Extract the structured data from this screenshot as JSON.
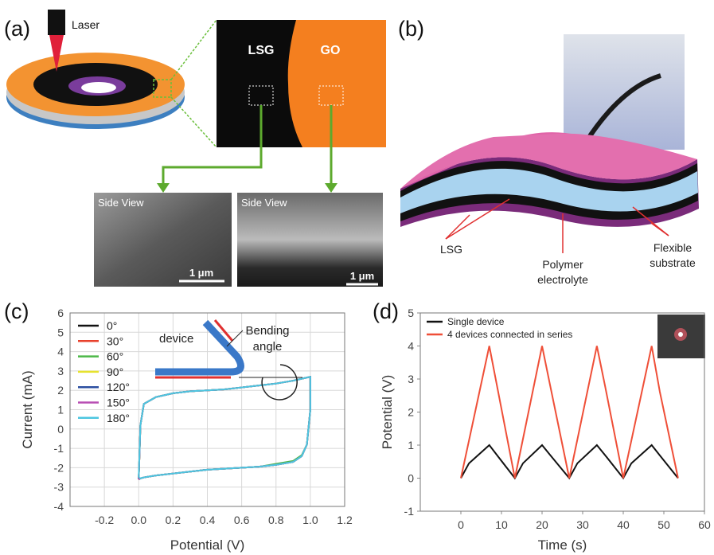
{
  "panel_a": {
    "label": "(a)",
    "laser": "Laser",
    "zoom_left": "LSG",
    "zoom_right": "GO",
    "sem_left": {
      "caption": "Side View",
      "scale": "1 μm"
    },
    "sem_right": {
      "caption": "Side View",
      "scale": "1 μm"
    }
  },
  "panel_b": {
    "label": "(b)",
    "lsg": "LSG",
    "electrolyte": [
      "Polymer",
      "electrolyte"
    ],
    "substrate": [
      "Flexible",
      "substrate"
    ]
  },
  "chart_data": [
    {
      "type": "line",
      "panel_label": "(c)",
      "x_label": "Potential (V)",
      "y_label": "Current (mA)",
      "annotations": {
        "device": "device",
        "angle": [
          "Bending",
          "angle"
        ]
      },
      "x": [
        0,
        0.01,
        0.03,
        0.1,
        0.2,
        0.3,
        0.4,
        0.5,
        0.6,
        0.7,
        0.8,
        0.9,
        1.0,
        1.0,
        0.98,
        0.95,
        0.9,
        0.8,
        0.7,
        0.6,
        0.5,
        0.4,
        0.3,
        0.2,
        0.1,
        0.03,
        0.01,
        0
      ],
      "series": [
        {
          "name": "0°",
          "color": "#111111",
          "values": [
            -2.6,
            0.2,
            1.3,
            1.65,
            1.85,
            1.95,
            2.0,
            2.05,
            2.15,
            2.25,
            2.35,
            2.5,
            2.7,
            1.0,
            -0.8,
            -1.4,
            -1.7,
            -1.85,
            -1.95,
            -2.0,
            -2.05,
            -2.1,
            -2.2,
            -2.3,
            -2.4,
            -2.5,
            -2.55,
            -2.6
          ]
        },
        {
          "name": "30°",
          "color": "#e8412c",
          "values": [
            -2.6,
            0.2,
            1.3,
            1.65,
            1.85,
            1.95,
            2.0,
            2.05,
            2.15,
            2.25,
            2.35,
            2.5,
            2.7,
            1.0,
            -0.8,
            -1.4,
            -1.7,
            -1.85,
            -1.95,
            -2.0,
            -2.05,
            -2.1,
            -2.2,
            -2.3,
            -2.4,
            -2.5,
            -2.55,
            -2.6
          ]
        },
        {
          "name": "60°",
          "color": "#4cb848",
          "values": [
            -2.6,
            0.2,
            1.3,
            1.65,
            1.85,
            1.95,
            2.0,
            2.05,
            2.15,
            2.25,
            2.35,
            2.5,
            2.7,
            1.0,
            -0.8,
            -1.35,
            -1.65,
            -1.8,
            -1.95,
            -2.0,
            -2.05,
            -2.1,
            -2.2,
            -2.3,
            -2.4,
            -2.5,
            -2.55,
            -2.6
          ]
        },
        {
          "name": "90°",
          "color": "#e6e22e",
          "values": [
            -2.6,
            0.2,
            1.3,
            1.65,
            1.85,
            1.95,
            2.0,
            2.05,
            2.15,
            2.25,
            2.35,
            2.5,
            2.7,
            1.0,
            -0.8,
            -1.4,
            -1.7,
            -1.85,
            -1.95,
            -2.0,
            -2.05,
            -2.1,
            -2.2,
            -2.3,
            -2.4,
            -2.5,
            -2.55,
            -2.6
          ]
        },
        {
          "name": "120°",
          "color": "#2b4ea0",
          "values": [
            -2.6,
            0.2,
            1.3,
            1.65,
            1.85,
            1.95,
            2.0,
            2.05,
            2.15,
            2.25,
            2.35,
            2.5,
            2.7,
            1.0,
            -0.8,
            -1.4,
            -1.7,
            -1.85,
            -1.95,
            -2.0,
            -2.05,
            -2.1,
            -2.2,
            -2.3,
            -2.4,
            -2.5,
            -2.55,
            -2.6
          ]
        },
        {
          "name": "150°",
          "color": "#b84fb4",
          "values": [
            -2.6,
            0.2,
            1.3,
            1.65,
            1.85,
            1.95,
            2.0,
            2.05,
            2.15,
            2.25,
            2.35,
            2.5,
            2.7,
            1.0,
            -0.8,
            -1.4,
            -1.7,
            -1.85,
            -1.95,
            -2.0,
            -2.05,
            -2.1,
            -2.2,
            -2.3,
            -2.4,
            -2.5,
            -2.55,
            -2.6
          ]
        },
        {
          "name": "180°",
          "color": "#4cc6e0",
          "values": [
            -2.5,
            0.2,
            1.3,
            1.65,
            1.85,
            1.95,
            2.0,
            2.05,
            2.15,
            2.25,
            2.35,
            2.5,
            2.7,
            1.0,
            -0.8,
            -1.4,
            -1.7,
            -1.85,
            -1.95,
            -2.0,
            -2.05,
            -2.1,
            -2.2,
            -2.3,
            -2.4,
            -2.5,
            -2.55,
            -2.5
          ]
        }
      ],
      "xlim": [
        -0.4,
        1.2
      ],
      "xticks": [
        -0.2,
        {
          "value": 0,
          "label": "0.0"
        },
        0.2,
        0.4,
        0.6,
        0.8,
        {
          "value": 1,
          "label": "1.0"
        },
        1.2
      ],
      "ylim": [
        -4,
        6
      ],
      "yticks": [
        -4,
        -3,
        -2,
        -1,
        0,
        1,
        2,
        3,
        4,
        5,
        6
      ],
      "grid": true
    },
    {
      "type": "line",
      "panel_label": "(d)",
      "x_label": "Time (s)",
      "y_label": "Potential (V)",
      "x": [
        0,
        2,
        7,
        9,
        13.3,
        15.3,
        20,
        22,
        26.7,
        28.7,
        33.5,
        35.5,
        40,
        42,
        47,
        49,
        53.5
      ],
      "series": [
        {
          "name": "Single device",
          "color": "#111111",
          "values": [
            0,
            0.45,
            1,
            0.68,
            0,
            0.45,
            1,
            0.7,
            0,
            0.45,
            1,
            0.7,
            0,
            0.45,
            1,
            0.69,
            0
          ]
        },
        {
          "name": "4 devices connected in series",
          "color": "#ef4f38",
          "values": [
            0,
            1.14,
            4,
            2.73,
            0,
            1.19,
            4,
            2.8,
            0,
            1.17,
            4,
            2.8,
            0,
            1.14,
            4,
            2.62,
            0
          ]
        }
      ],
      "xlim": [
        -10,
        60
      ],
      "xticks": [
        0,
        10,
        20,
        30,
        40,
        50,
        60
      ],
      "ylim": [
        -1,
        5
      ],
      "yticks": [
        -1,
        0,
        1,
        2,
        3,
        4,
        5
      ],
      "grid": false
    }
  ]
}
